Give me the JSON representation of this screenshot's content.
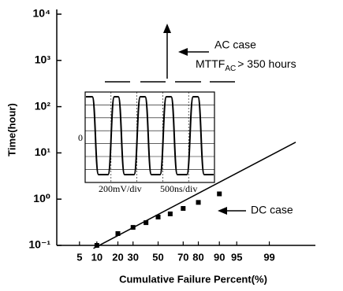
{
  "chart_data": {
    "type": "scatter",
    "xlabel": "Cumulative Failure Percent(%)",
    "ylabel": "Time(hour)",
    "xscale": "probit",
    "yscale": "log",
    "xlim": [
      1.7,
      99.95
    ],
    "ylim": [
      0.1,
      10000
    ],
    "xticks": [
      5,
      10,
      20,
      30,
      50,
      70,
      80,
      90,
      95,
      99
    ],
    "yticks": [
      {
        "value": 10000,
        "label": "10⁴"
      },
      {
        "value": 1000,
        "label": "10³"
      },
      {
        "value": 100,
        "label": "10²"
      },
      {
        "value": 10,
        "label": "10¹"
      },
      {
        "value": 1,
        "label": "10⁰"
      },
      {
        "value": 0.1,
        "label": "10⁻¹"
      }
    ],
    "series": [
      {
        "color": "#000000",
        "marker": "square",
        "x": [
          10,
          20,
          30,
          40,
          50,
          60,
          70,
          80,
          90
        ],
        "values": [
          0.1,
          0.18,
          0.245,
          0.31,
          0.41,
          0.48,
          0.63,
          0.85,
          1.3
        ]
      }
    ],
    "fit": {
      "x": [
        8.8,
        99.8
      ],
      "values": [
        0.086,
        17
      ]
    },
    "ac_label": "AC case",
    "mttf": {
      "text": "MTTF",
      "sub": "AC",
      "rest": "> 350 hours"
    },
    "dc_label": "DC case",
    "inset_labels": [
      "0",
      "200mV/div",
      "500ns/div"
    ]
  }
}
